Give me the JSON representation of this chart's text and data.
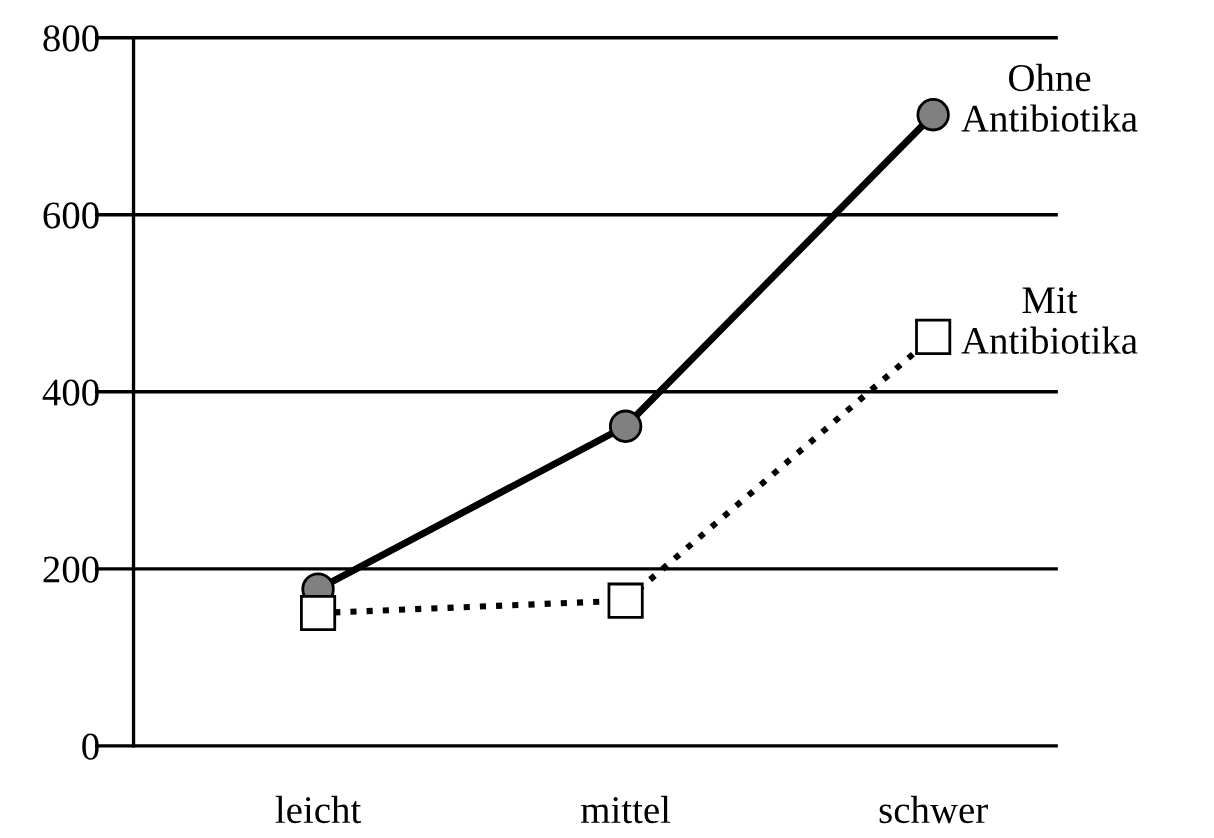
{
  "chart_data": {
    "type": "line",
    "categories": [
      "leicht",
      "mittel",
      "schwer"
    ],
    "series": [
      {
        "name": "Ohne\nAntibiotika",
        "color": "#000000",
        "marker": "circle",
        "line_style": "solid",
        "values": [
          177,
          361,
          713
        ]
      },
      {
        "name": "Mit\nAntibiotika",
        "color": "#000000",
        "marker": "square",
        "line_style": "dotted",
        "values": [
          150,
          164,
          462
        ]
      }
    ],
    "ylim": [
      0,
      800
    ],
    "yticks": [
      0,
      200,
      400,
      600,
      800
    ],
    "grid": "y",
    "legend": false
  }
}
